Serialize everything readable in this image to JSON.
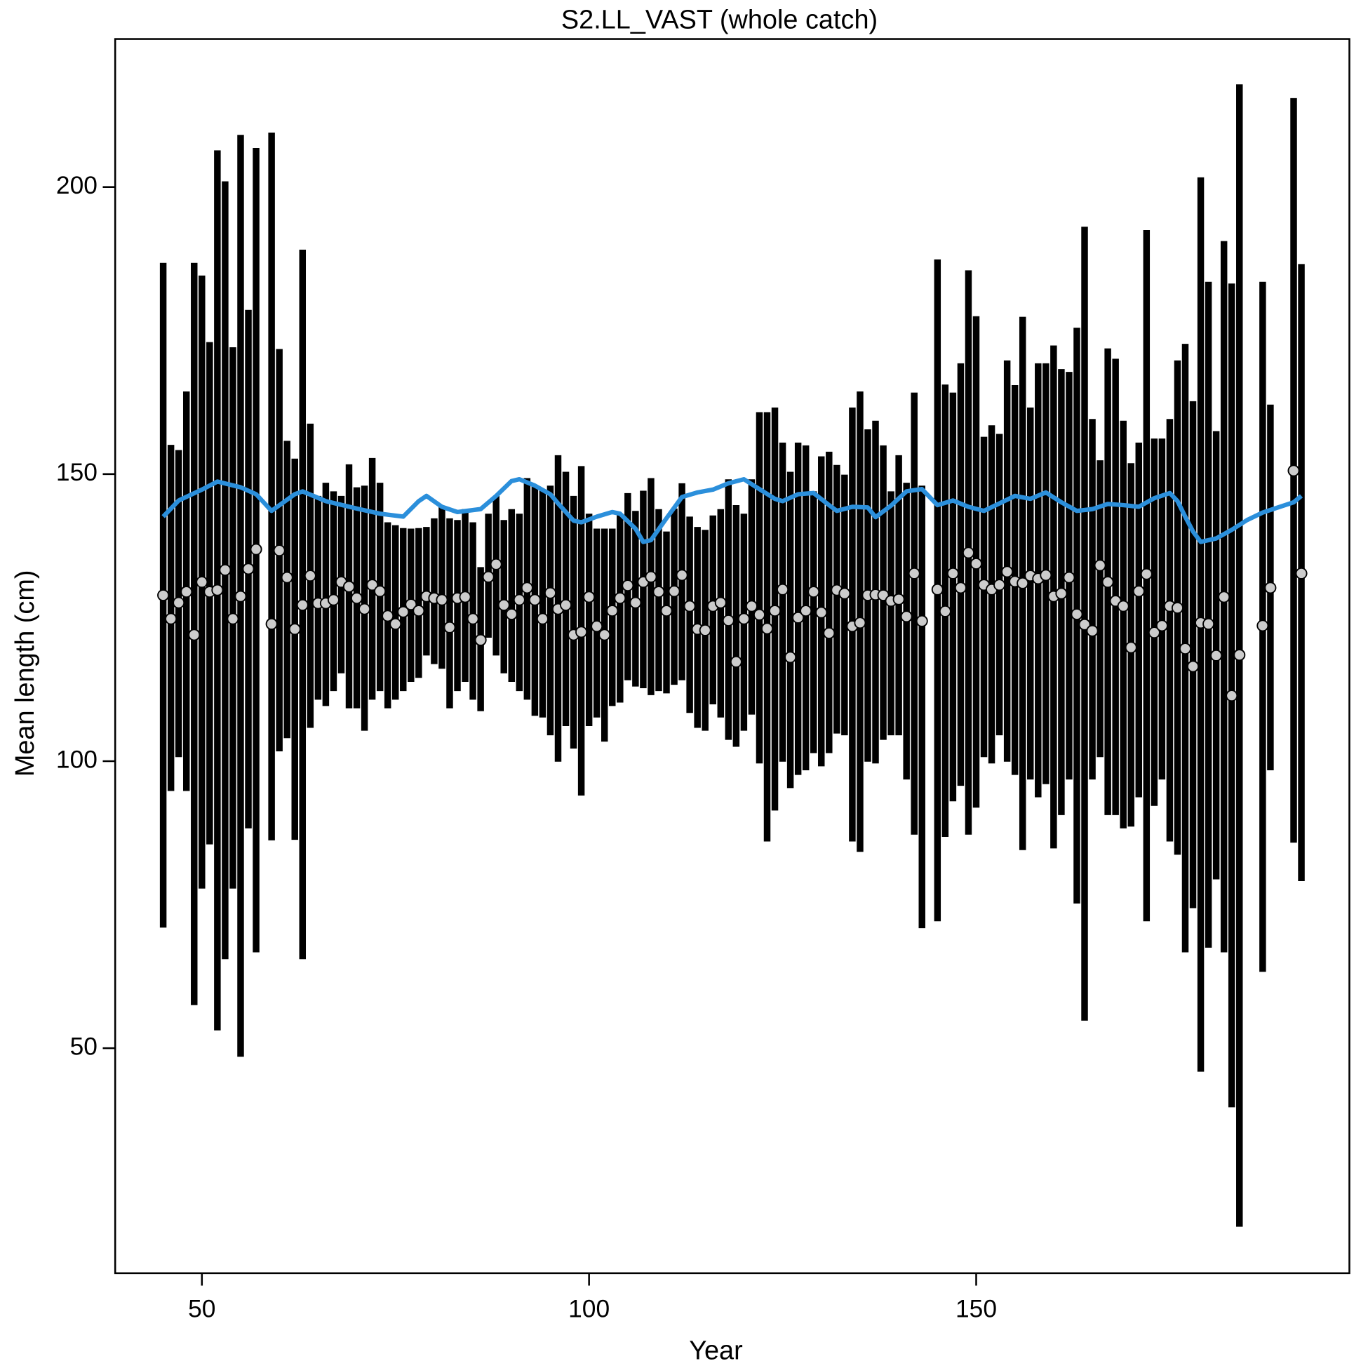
{
  "chart_data": {
    "type": "errorbar",
    "title": "S2.LL_VAST (whole catch)",
    "xlabel": "Year",
    "ylabel": "Mean length (cm)",
    "xlim": [
      38.8,
      198.2
    ],
    "ylim": [
      10.8,
      225.8
    ],
    "xticks": [
      50,
      100,
      150
    ],
    "yticks": [
      50,
      100,
      150,
      200
    ],
    "bar_color": "#000000",
    "point_color": "#cccccc",
    "x": [
      45,
      46,
      47,
      48,
      49,
      50,
      51,
      52,
      53,
      54,
      55,
      56,
      57,
      59,
      60,
      61,
      62,
      63,
      64,
      65,
      66,
      67,
      68,
      69,
      70,
      71,
      72,
      73,
      74,
      75,
      76,
      77,
      78,
      79,
      80,
      81,
      82,
      83,
      84,
      85,
      86,
      87,
      88,
      89,
      90,
      91,
      92,
      93,
      94,
      95,
      96,
      97,
      98,
      99,
      100,
      101,
      102,
      103,
      104,
      105,
      106,
      107,
      108,
      109,
      110,
      111,
      112,
      113,
      114,
      115,
      116,
      117,
      118,
      119,
      120,
      121,
      122,
      123,
      124,
      125,
      126,
      127,
      128,
      129,
      130,
      131,
      132,
      133,
      134,
      135,
      136,
      137,
      138,
      139,
      140,
      141,
      142,
      143,
      145,
      146,
      147,
      148,
      149,
      150,
      151,
      152,
      153,
      154,
      155,
      156,
      157,
      158,
      159,
      160,
      161,
      162,
      163,
      164,
      165,
      166,
      167,
      168,
      169,
      170,
      171,
      172,
      173,
      174,
      175,
      176,
      177,
      178,
      179,
      180,
      181,
      182,
      183,
      184,
      187,
      188,
      191,
      192
    ],
    "values": [
      128.9,
      124.8,
      127.6,
      129.5,
      122.0,
      131.2,
      129.5,
      129.8,
      133.3,
      124.8,
      128.7,
      133.5,
      136.9,
      123.9,
      136.7,
      132.0,
      123.0,
      127.2,
      132.3,
      127.5,
      127.5,
      128.1,
      131.2,
      130.4,
      128.4,
      126.5,
      130.7,
      129.6,
      125.3,
      123.9,
      126.0,
      127.3,
      126.2,
      128.7,
      128.4,
      128.1,
      123.3,
      128.4,
      128.6,
      124.8,
      121.1,
      132.1,
      134.3,
      127.2,
      125.6,
      128.1,
      130.2,
      128.1,
      124.8,
      129.3,
      126.5,
      127.2,
      122.0,
      122.5,
      128.6,
      123.5,
      122.0,
      126.2,
      128.4,
      130.6,
      127.6,
      131.2,
      132.1,
      129.5,
      126.2,
      129.6,
      132.4,
      127.0,
      123.0,
      122.8,
      127.0,
      127.6,
      124.5,
      117.3,
      124.8,
      127.0,
      125.5,
      123.1,
      126.2,
      129.9,
      118.1,
      125.0,
      126.2,
      129.5,
      125.9,
      122.3,
      129.8,
      129.2,
      123.5,
      124.1,
      128.9,
      129.0,
      128.9,
      127.9,
      128.2,
      125.2,
      132.7,
      124.4,
      129.9,
      126.1,
      132.7,
      130.2,
      136.3,
      134.4,
      130.7,
      129.9,
      130.7,
      133.0,
      131.3,
      131.0,
      132.3,
      131.8,
      132.4,
      128.7,
      129.2,
      132.0,
      125.6,
      123.8,
      122.7,
      134.1,
      131.2,
      127.9,
      127.0,
      119.8,
      129.6,
      132.6,
      122.4,
      123.6,
      127.0,
      126.7,
      119.6,
      116.5,
      124.1,
      123.9,
      118.4,
      128.6,
      111.4,
      118.5,
      123.6,
      130.2,
      150.6,
      132.7
    ],
    "lower": [
      71.0,
      94.8,
      100.7,
      94.8,
      57.5,
      77.8,
      85.5,
      53.1,
      65.5,
      77.8,
      48.5,
      88.3,
      66.7,
      86.2,
      101.7,
      104.0,
      86.3,
      65.5,
      105.8,
      110.7,
      109.6,
      112.2,
      115.3,
      109.2,
      109.2,
      105.3,
      110.7,
      112.2,
      109.2,
      110.7,
      112.2,
      113.8,
      114.5,
      118.4,
      116.9,
      116.1,
      109.2,
      112.2,
      113.8,
      110.7,
      108.7,
      121.5,
      118.4,
      115.3,
      113.8,
      112.2,
      110.7,
      107.9,
      107.6,
      104.5,
      99.9,
      106.1,
      102.2,
      94.0,
      106.1,
      107.6,
      103.4,
      109.6,
      110.2,
      114.1,
      113.0,
      112.7,
      111.5,
      112.2,
      111.8,
      113.3,
      114.1,
      108.4,
      105.8,
      105.3,
      109.9,
      107.6,
      103.7,
      102.5,
      105.3,
      108.1,
      99.6,
      86.0,
      91.4,
      99.9,
      95.3,
      97.6,
      98.4,
      101.4,
      99.1,
      101.4,
      104.8,
      104.5,
      86.0,
      84.2,
      99.9,
      99.6,
      103.7,
      104.5,
      104.5,
      96.8,
      87.2,
      70.9,
      72.1,
      86.8,
      93.0,
      95.7,
      87.2,
      91.9,
      100.7,
      99.6,
      104.5,
      99.9,
      97.6,
      84.5,
      96.8,
      93.7,
      96.0,
      84.8,
      90.6,
      96.8,
      75.2,
      54.8,
      96.8,
      100.7,
      90.6,
      90.6,
      88.3,
      88.6,
      93.7,
      72.1,
      92.2,
      96.8,
      86.0,
      83.7,
      66.7,
      74.4,
      45.9,
      67.5,
      79.4,
      66.7,
      39.7,
      18.9,
      63.3,
      98.4,
      85.8,
      79.1
    ],
    "upper": [
      186.8,
      155.1,
      154.2,
      164.4,
      186.8,
      184.6,
      173.0,
      206.4,
      201.0,
      172.1,
      209.1,
      178.6,
      206.8,
      209.5,
      171.8,
      155.8,
      152.7,
      189.1,
      158.8,
      146.2,
      148.5,
      147.0,
      146.2,
      151.7,
      147.7,
      148.0,
      152.8,
      148.5,
      141.6,
      141.1,
      140.6,
      140.5,
      140.6,
      140.8,
      142.3,
      144.5,
      142.3,
      142.0,
      143.9,
      141.6,
      133.8,
      143.1,
      146.2,
      142.0,
      143.9,
      143.1,
      149.3,
      148.0,
      147.3,
      148.0,
      153.3,
      150.4,
      146.2,
      151.4,
      143.1,
      140.5,
      140.5,
      140.5,
      143.1,
      146.7,
      143.6,
      147.1,
      149.3,
      143.9,
      140.0,
      144.0,
      148.4,
      142.6,
      140.8,
      140.3,
      142.8,
      143.9,
      149.1,
      144.6,
      143.1,
      149.1,
      160.8,
      160.8,
      161.6,
      155.5,
      150.4,
      155.5,
      155.0,
      147.0,
      153.1,
      153.9,
      151.6,
      149.9,
      161.6,
      164.4,
      157.8,
      159.3,
      155.0,
      147.0,
      153.3,
      148.5,
      164.2,
      148.0,
      187.4,
      165.6,
      164.2,
      169.3,
      185.5,
      177.5,
      156.5,
      158.5,
      157.0,
      169.8,
      165.5,
      177.4,
      161.6,
      169.3,
      169.3,
      172.4,
      168.3,
      167.8,
      175.5,
      193.1,
      159.6,
      152.4,
      171.9,
      170.1,
      159.3,
      151.9,
      155.5,
      192.5,
      156.2,
      156.2,
      159.6,
      169.8,
      172.7,
      162.7,
      201.7,
      183.5,
      157.5,
      190.6,
      183.2,
      217.9,
      183.5,
      162.1,
      215.5,
      186.6
    ],
    "expected": {
      "color": "#2b8fdb",
      "x": [
        45,
        47,
        50,
        52,
        55,
        57,
        59,
        62,
        63,
        66,
        70,
        73,
        76,
        78,
        79,
        81,
        83,
        86,
        88,
        90,
        91,
        93,
        95,
        96,
        98,
        99,
        101,
        103,
        104,
        106,
        107,
        108,
        110,
        112,
        114,
        116,
        118,
        120,
        122,
        124,
        125,
        127,
        129,
        131,
        132,
        134,
        136,
        137,
        139,
        141,
        143,
        145,
        147,
        149,
        151,
        153,
        155,
        157,
        159,
        161,
        163,
        165,
        167,
        169,
        171,
        173,
        175,
        176,
        177,
        178,
        179,
        181,
        183,
        185,
        187,
        189,
        191,
        192
      ],
      "values": [
        142.6,
        145.4,
        147.3,
        148.7,
        147.7,
        146.5,
        143.6,
        146.5,
        147.0,
        145.3,
        144.0,
        143.1,
        142.6,
        145.3,
        146.2,
        144.3,
        143.4,
        143.9,
        146.2,
        148.8,
        149.1,
        148.0,
        146.5,
        144.9,
        141.9,
        141.6,
        142.6,
        143.4,
        143.1,
        140.5,
        138.2,
        138.5,
        142.3,
        146.0,
        146.8,
        147.3,
        148.4,
        149.1,
        147.4,
        145.7,
        145.3,
        146.5,
        146.7,
        144.6,
        143.6,
        144.3,
        144.2,
        142.5,
        144.5,
        147.0,
        147.4,
        144.6,
        145.4,
        144.3,
        143.6,
        144.9,
        146.2,
        145.7,
        146.8,
        145.1,
        143.6,
        143.9,
        144.8,
        144.6,
        144.3,
        145.8,
        146.7,
        145.3,
        142.6,
        140.0,
        138.2,
        138.8,
        140.3,
        142.0,
        143.3,
        144.2,
        145.1,
        146.2
      ]
    }
  }
}
